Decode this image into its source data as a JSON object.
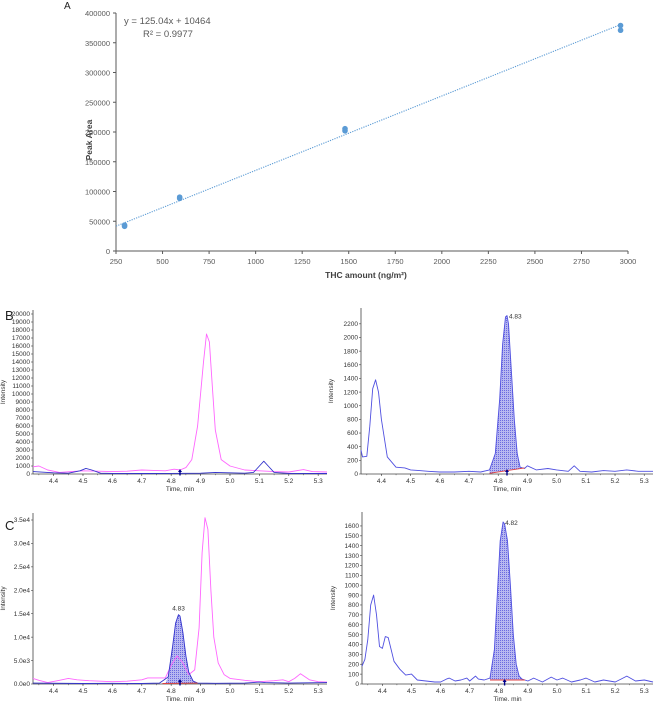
{
  "figure": {
    "panels": [
      "A",
      "B",
      "C"
    ]
  },
  "chart_data": [
    {
      "panel": "A",
      "type": "scatter",
      "title": "",
      "xlabel": "THC amount (ng/m²)",
      "ylabel": "Peak Area",
      "xlim": [
        250,
        3000
      ],
      "ylim": [
        0,
        400000
      ],
      "x_ticks": [
        "250",
        "500",
        "750",
        "1000",
        "1250",
        "1500",
        "1750",
        "2000",
        "2250",
        "2500",
        "2750",
        "3000"
      ],
      "y_ticks": [
        "0",
        "50000",
        "100000",
        "150000",
        "200000",
        "250000",
        "300000",
        "350000",
        "400000"
      ],
      "grid": false,
      "series": [
        {
          "name": "Calibration points",
          "color": "#5b9bd5",
          "points": [
            {
              "x": 296,
              "y": 41500
            },
            {
              "x": 296,
              "y": 43500
            },
            {
              "x": 592,
              "y": 88500
            },
            {
              "x": 592,
              "y": 90500
            },
            {
              "x": 1480,
              "y": 202000
            },
            {
              "x": 1480,
              "y": 205500
            },
            {
              "x": 2960,
              "y": 371000
            },
            {
              "x": 2960,
              "y": 379000
            }
          ]
        }
      ],
      "trendline": {
        "type": "linear",
        "style": "dotted",
        "color": "#5b9bd5",
        "slope": 125.04,
        "intercept": 10464,
        "equation": "y = 125.04x + 10464",
        "r_squared": "R² = 0.9977"
      }
    },
    {
      "panel": "B-left",
      "type": "line",
      "xlabel": "Time, min",
      "ylabel": "Intensity",
      "xlim": [
        4.33,
        5.33
      ],
      "ylim": [
        0,
        20000
      ],
      "x_ticks": [
        "4.4",
        "4.5",
        "4.6",
        "4.7",
        "4.8",
        "4.9",
        "5.0",
        "5.1",
        "5.2",
        "5.3"
      ],
      "y_ticks": [
        "0",
        "1000",
        "2000",
        "3000",
        "4000",
        "5000",
        "6000",
        "7000",
        "8000",
        "9000",
        "10000",
        "11000",
        "12000",
        "13000",
        "14000",
        "15000",
        "16000",
        "17000",
        "18000",
        "19000",
        "20000"
      ],
      "marker_time": 4.83,
      "series": [
        {
          "name": "pink trace",
          "color": "#ff66ff",
          "style": "solid",
          "x": [
            4.33,
            4.35,
            4.38,
            4.42,
            4.46,
            4.5,
            4.55,
            4.6,
            4.65,
            4.7,
            4.74,
            4.78,
            4.81,
            4.83,
            4.85,
            4.87,
            4.89,
            4.91,
            4.92,
            4.93,
            4.94,
            4.95,
            4.97,
            5.0,
            5.05,
            5.1,
            5.15,
            5.2,
            5.25,
            5.28,
            5.33
          ],
          "y": [
            900,
            1000,
            500,
            200,
            300,
            400,
            350,
            300,
            350,
            500,
            450,
            400,
            600,
            500,
            800,
            1800,
            6000,
            14000,
            17500,
            16500,
            11000,
            5500,
            1800,
            1000,
            500,
            400,
            300,
            250,
            550,
            300,
            250
          ]
        },
        {
          "name": "blue trace",
          "color": "#3333cc",
          "style": "solid",
          "x": [
            4.33,
            4.4,
            4.45,
            4.49,
            4.51,
            4.53,
            4.56,
            4.6,
            4.7,
            4.8,
            4.9,
            4.95,
            5.0,
            5.05,
            5.08,
            5.1,
            5.115,
            5.13,
            5.15,
            5.2,
            5.33
          ],
          "y": [
            300,
            150,
            100,
            400,
            700,
            500,
            100,
            80,
            60,
            80,
            100,
            200,
            150,
            100,
            200,
            1000,
            1600,
            1000,
            200,
            80,
            60
          ]
        }
      ]
    },
    {
      "panel": "B-right",
      "type": "line",
      "xlabel": "Time, min",
      "ylabel": "Intensity",
      "xlim": [
        4.33,
        5.33
      ],
      "ylim": [
        0,
        2300
      ],
      "x_ticks": [
        "4.4",
        "4.5",
        "4.6",
        "4.7",
        "4.8",
        "4.9",
        "5.0",
        "5.1",
        "5.2",
        "5.3"
      ],
      "y_ticks": [
        "0",
        "200",
        "400",
        "600",
        "800",
        "1000",
        "1200",
        "1400",
        "1600",
        "1800",
        "2000",
        "2200"
      ],
      "peak_label": "4.83",
      "marker_time": 4.83,
      "series": [
        {
          "name": "blue trace",
          "color": "#5050e0",
          "style": "solid",
          "x": [
            4.33,
            4.335,
            4.35,
            4.36,
            4.37,
            4.38,
            4.39,
            4.4,
            4.42,
            4.45,
            4.48,
            4.5,
            4.53,
            4.56,
            4.6,
            4.65,
            4.7,
            4.74,
            4.77,
            4.79,
            4.805,
            4.815,
            4.825,
            4.83,
            4.835,
            4.845,
            4.855,
            4.865,
            4.875,
            4.89,
            4.9,
            4.93,
            4.97,
            5.0,
            5.04,
            5.06,
            5.08,
            5.12,
            5.16,
            5.2,
            5.24,
            5.28,
            5.33
          ],
          "y": [
            350,
            250,
            260,
            700,
            1250,
            1380,
            1200,
            800,
            250,
            100,
            90,
            60,
            50,
            40,
            30,
            30,
            40,
            30,
            60,
            300,
            1100,
            1900,
            2300,
            2320,
            2200,
            1500,
            800,
            300,
            100,
            80,
            120,
            60,
            80,
            60,
            40,
            120,
            40,
            30,
            50,
            40,
            60,
            40,
            40
          ]
        },
        {
          "name": "baseline",
          "color": "#e04040",
          "style": "solid",
          "x": [
            4.77,
            4.89
          ],
          "y": [
            10,
            90
          ]
        }
      ],
      "shaded_peak": {
        "from": 4.77,
        "to": 4.89,
        "fill": "#9999ee"
      }
    },
    {
      "panel": "C-left",
      "type": "line",
      "xlabel": "Time, min",
      "ylabel": "Intensity",
      "xlim": [
        4.33,
        5.33
      ],
      "ylim": [
        0,
        35000
      ],
      "x_ticks": [
        "4.4",
        "4.5",
        "4.6",
        "4.7",
        "4.8",
        "4.9",
        "5.0",
        "5.1",
        "5.2",
        "5.3"
      ],
      "y_ticks": [
        "0.0e0",
        "5.0e3",
        "1.0e4",
        "1.5e4",
        "2.0e4",
        "2.5e4",
        "3.0e4",
        "3.5e4"
      ],
      "peak_label": "4.83",
      "marker_time": 4.83,
      "series": [
        {
          "name": "pink trace",
          "color": "#ff66ff",
          "style": "solid",
          "x": [
            4.33,
            4.35,
            4.38,
            4.42,
            4.45,
            4.48,
            4.52,
            4.6,
            4.65,
            4.7,
            4.72,
            4.78,
            4.8,
            4.82,
            4.84,
            4.86,
            4.88,
            4.895,
            4.905,
            4.915,
            4.925,
            4.935,
            4.945,
            4.96,
            4.98,
            5.0,
            5.05,
            5.1,
            5.15,
            5.18,
            5.2,
            5.22,
            5.24,
            5.27,
            5.3,
            5.33
          ],
          "y": [
            1200,
            800,
            300,
            800,
            1200,
            900,
            700,
            500,
            600,
            900,
            1300,
            1300,
            4000,
            6000,
            4500,
            2000,
            3000,
            12000,
            28000,
            35500,
            33000,
            20000,
            10000,
            4500,
            2000,
            1200,
            800,
            500,
            700,
            900,
            500,
            1200,
            2200,
            900,
            500,
            400
          ]
        },
        {
          "name": "blue trace",
          "color": "#3333cc",
          "style": "solid",
          "x": [
            4.33,
            4.5,
            4.6,
            4.7,
            4.76,
            4.79,
            4.805,
            4.815,
            4.825,
            4.83,
            4.84,
            4.85,
            4.86,
            4.875,
            4.89,
            4.95,
            5.05,
            5.1,
            5.12,
            5.2,
            5.33
          ],
          "y": [
            200,
            100,
            150,
            100,
            200,
            1500,
            8000,
            13000,
            14800,
            14500,
            11000,
            6000,
            2500,
            600,
            200,
            150,
            200,
            400,
            300,
            200,
            300
          ]
        },
        {
          "name": "baseline",
          "color": "#e04040",
          "style": "solid",
          "x": [
            4.77,
            4.89
          ],
          "y": [
            100,
            200
          ]
        }
      ],
      "shaded_peak": {
        "from": 4.78,
        "to": 4.885,
        "fill": "#9999ee"
      }
    },
    {
      "panel": "C-right",
      "type": "line",
      "xlabel": "Time, min",
      "ylabel": "Intensity",
      "xlim": [
        4.33,
        5.33
      ],
      "ylim": [
        0,
        1650
      ],
      "x_ticks": [
        "4.4",
        "4.5",
        "4.6",
        "4.7",
        "4.8",
        "4.9",
        "5.0",
        "5.1",
        "5.2",
        "5.3"
      ],
      "y_ticks": [
        "0",
        "100",
        "200",
        "300",
        "400",
        "500",
        "600",
        "700",
        "800",
        "900",
        "1000",
        "1100",
        "1200",
        "1300",
        "1400",
        "1500",
        "1600"
      ],
      "peak_label": "4.82",
      "marker_time": 4.82,
      "series": [
        {
          "name": "blue trace",
          "color": "#5050e0",
          "style": "solid",
          "x": [
            4.33,
            4.34,
            4.35,
            4.36,
            4.37,
            4.38,
            4.39,
            4.4,
            4.41,
            4.42,
            4.43,
            4.44,
            4.46,
            4.48,
            4.5,
            4.52,
            4.55,
            4.58,
            4.6,
            4.62,
            4.63,
            4.65,
            4.67,
            4.69,
            4.7,
            4.72,
            4.73,
            4.75,
            4.77,
            4.785,
            4.795,
            4.805,
            4.815,
            4.82,
            4.83,
            4.84,
            4.85,
            4.86,
            4.87,
            4.88,
            4.9,
            4.92,
            4.95,
            4.98,
            5.0,
            5.02,
            5.05,
            5.08,
            5.1,
            5.13,
            5.16,
            5.2,
            5.22,
            5.24,
            5.27,
            5.3,
            5.33
          ],
          "y": [
            180,
            250,
            450,
            800,
            900,
            700,
            380,
            360,
            480,
            470,
            350,
            230,
            150,
            90,
            100,
            40,
            30,
            20,
            20,
            50,
            60,
            30,
            40,
            60,
            30,
            80,
            50,
            40,
            60,
            350,
            900,
            1450,
            1640,
            1620,
            1450,
            1000,
            500,
            200,
            80,
            50,
            30,
            60,
            20,
            70,
            40,
            60,
            20,
            40,
            60,
            20,
            40,
            20,
            50,
            80,
            30,
            40,
            20
          ]
        },
        {
          "name": "baseline",
          "color": "#e04040",
          "style": "solid",
          "x": [
            4.77,
            4.89
          ],
          "y": [
            40,
            40
          ]
        }
      ],
      "shaded_peak": {
        "from": 4.77,
        "to": 4.89,
        "fill": "#9999ee"
      }
    }
  ]
}
